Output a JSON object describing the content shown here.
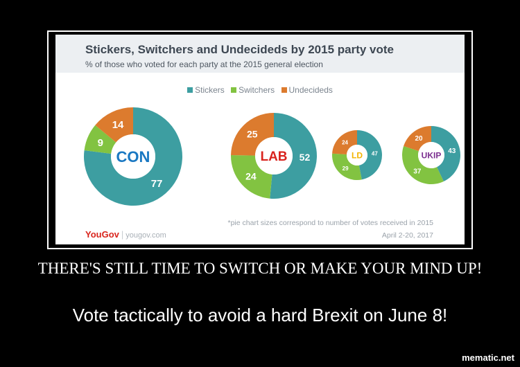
{
  "caption": {
    "line1": "THERE'S STILL TIME TO SWITCH OR MAKE YOUR MIND UP!",
    "line2": "Vote tactically to avoid a hard Brexit on June 8!"
  },
  "watermark": "mematic.net",
  "source": {
    "brand": "YouGov",
    "url": "yougov.com",
    "date": "April 2-20, 2017",
    "footnote": "*pie chart sizes correspond to number of votes received in 2015"
  },
  "colors": {
    "stickers": "#3d9ea1",
    "switchers": "#82c341",
    "undecideds": "#dc7b2e"
  },
  "chart_data": {
    "type": "pie",
    "title": "Stickers, Switchers and Undecideds by 2015 party vote",
    "subtitle": "% of those who voted for each party at the 2015 general election",
    "legend_position": "top",
    "series_names": [
      "Stickers",
      "Switchers",
      "Undecideds"
    ],
    "pies": [
      {
        "label": "CON",
        "label_color": "#1a78c2",
        "values": [
          77,
          9,
          14
        ]
      },
      {
        "label": "LAB",
        "label_color": "#d9231e",
        "values": [
          52,
          24,
          25
        ]
      },
      {
        "label": "LD",
        "label_color": "#f4b400",
        "values": [
          47,
          29,
          24
        ]
      },
      {
        "label": "UKIP",
        "label_color": "#7a2e8f",
        "values": [
          43,
          37,
          20
        ]
      }
    ]
  }
}
